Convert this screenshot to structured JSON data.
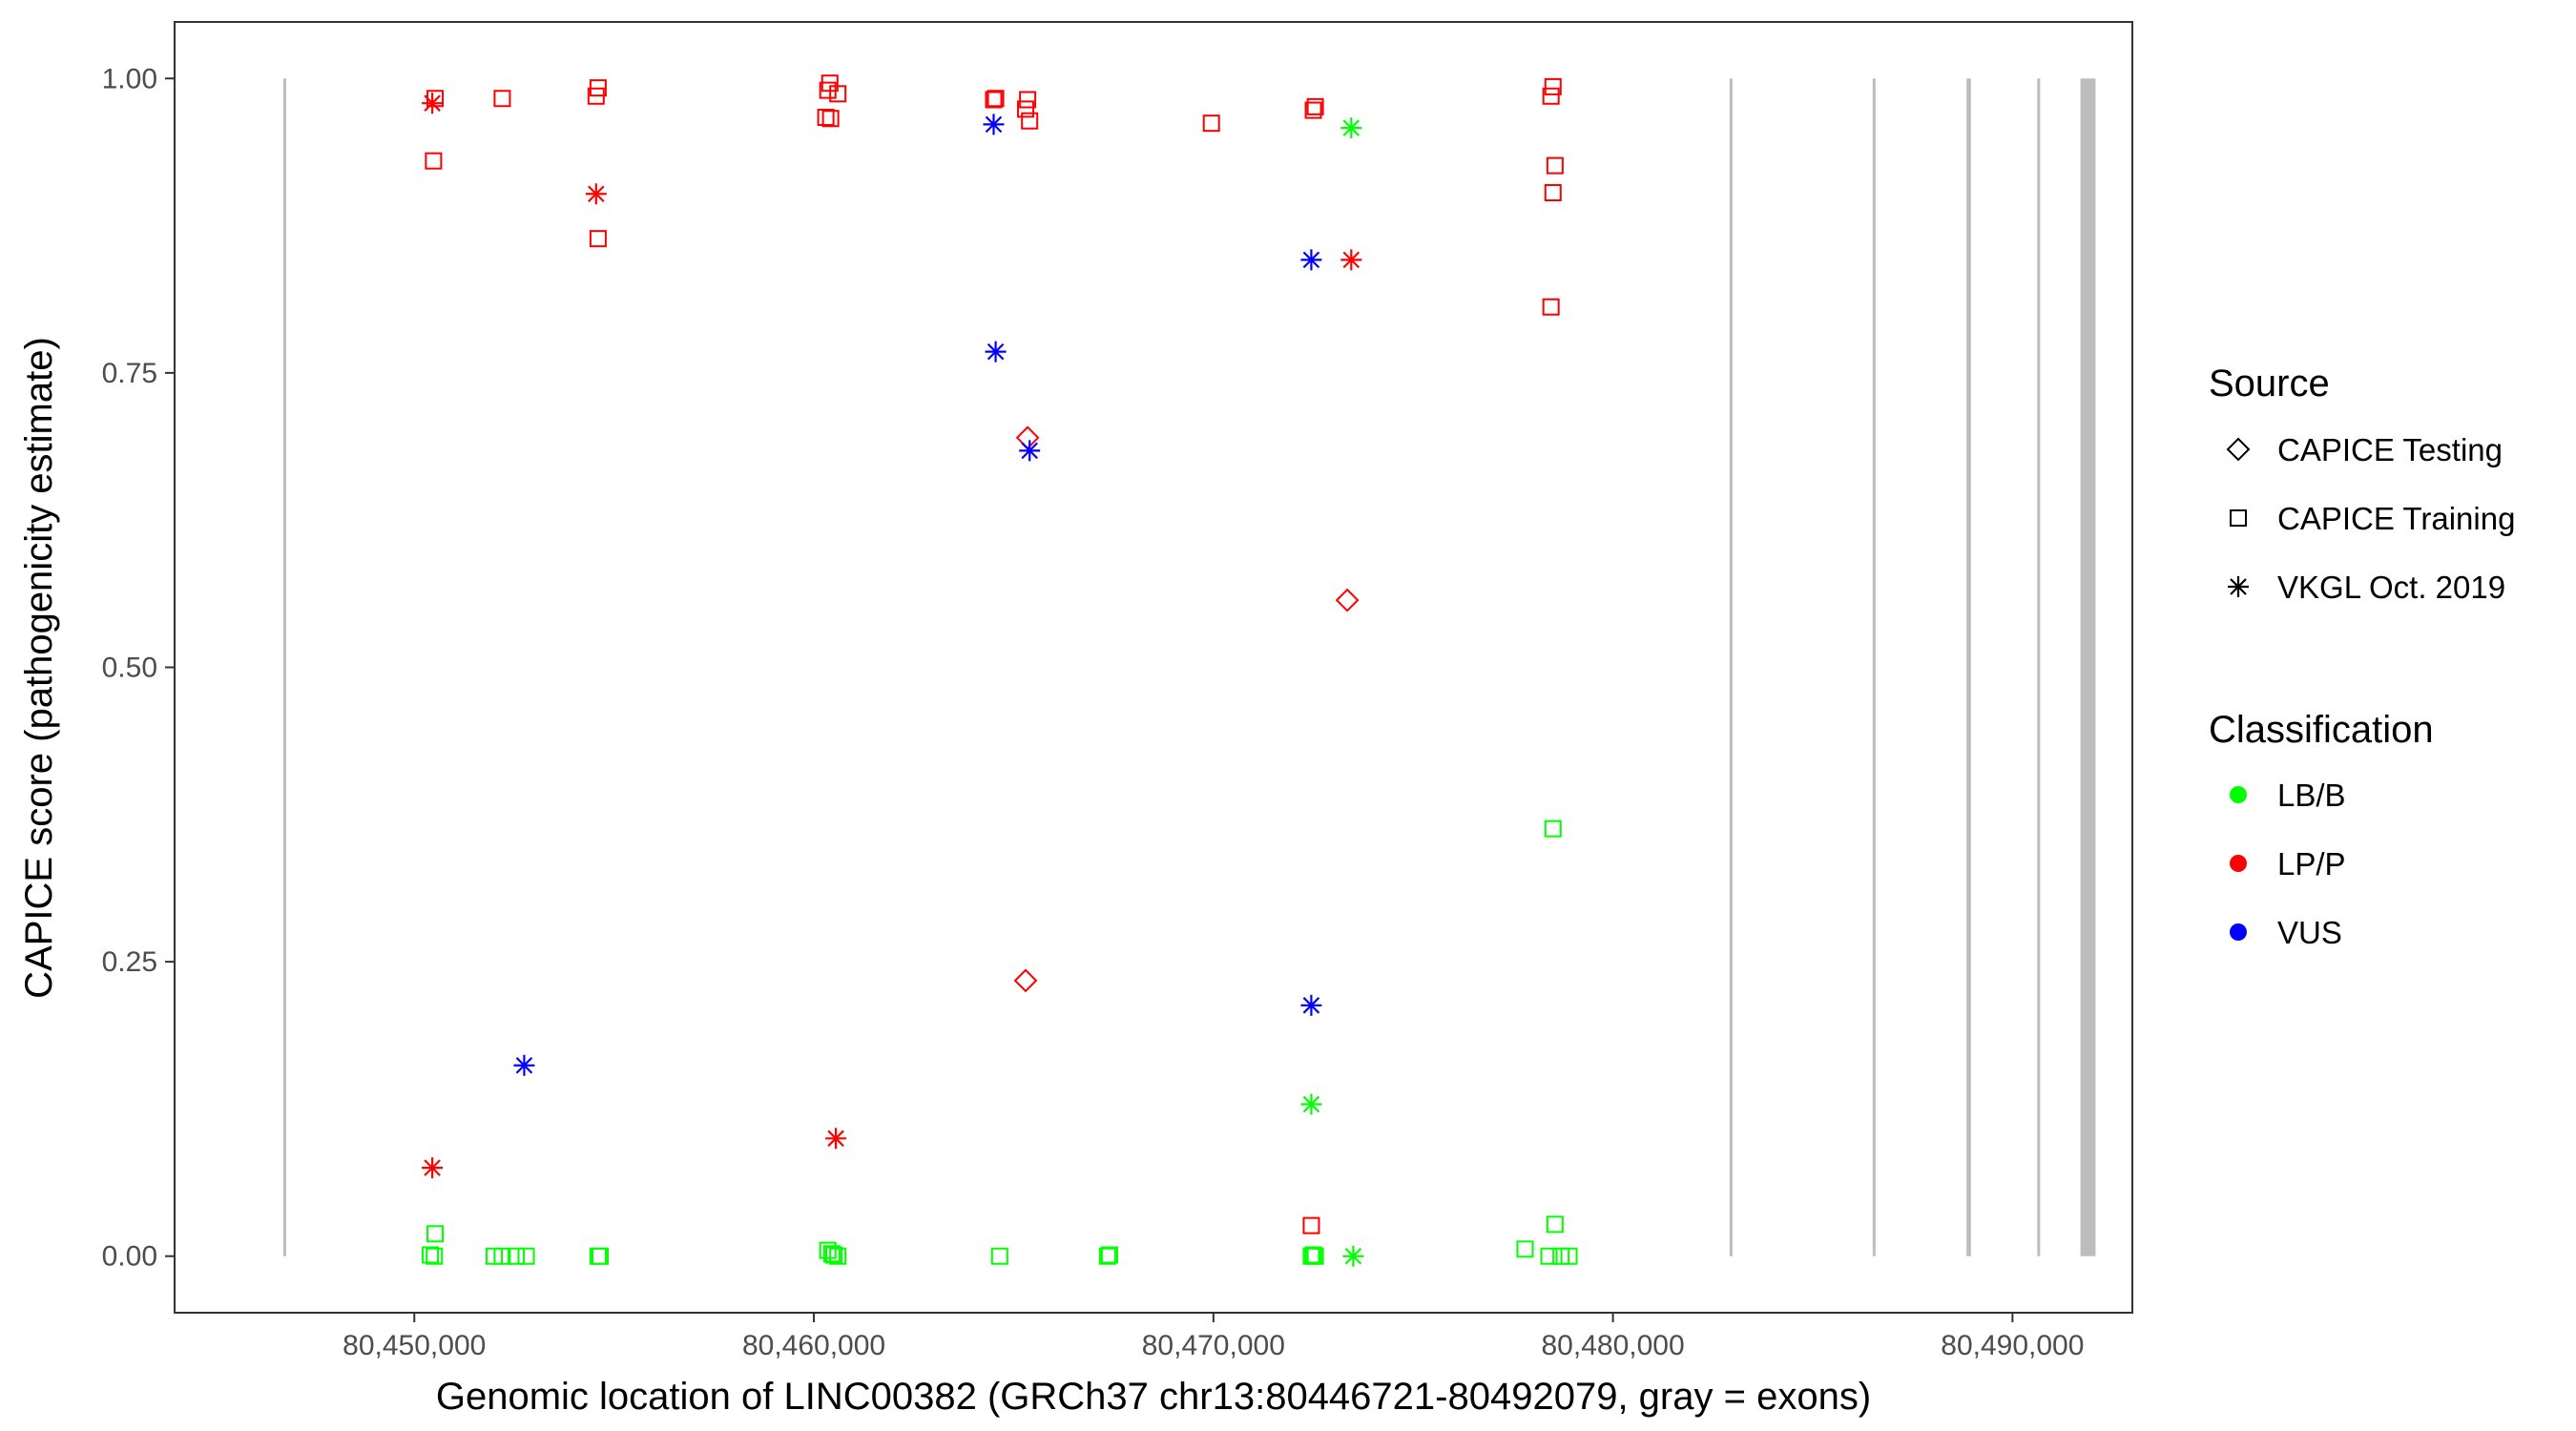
{
  "chart_data": {
    "type": "scatter",
    "title": "",
    "xlabel": "Genomic location of LINC00382 (GRCh37 chr13:80446721-80492079, gray = exons)",
    "ylabel": "CAPICE score (pathogenicity estimate)",
    "xlim": [
      80444000,
      80493000
    ],
    "ylim": [
      -0.048,
      1.048
    ],
    "x_ticks": [
      {
        "value": 80450000,
        "label": "80,450,000"
      },
      {
        "value": 80460000,
        "label": "80,460,000"
      },
      {
        "value": 80470000,
        "label": "80,470,000"
      },
      {
        "value": 80480000,
        "label": "80,480,000"
      },
      {
        "value": 80490000,
        "label": "80,490,000"
      }
    ],
    "y_ticks": [
      {
        "value": 0.0,
        "label": "0.00"
      },
      {
        "value": 0.25,
        "label": "0.25"
      },
      {
        "value": 0.5,
        "label": "0.50"
      },
      {
        "value": 0.75,
        "label": "0.75"
      },
      {
        "value": 1.0,
        "label": "1.00"
      }
    ],
    "grid": false,
    "exons": [
      {
        "start": 80446721,
        "end": 80446790
      },
      {
        "start": 80482920,
        "end": 80482990
      },
      {
        "start": 80486500,
        "end": 80486570
      },
      {
        "start": 80488850,
        "end": 80488960
      },
      {
        "start": 80490620,
        "end": 80490690
      },
      {
        "start": 80491700,
        "end": 80492079
      }
    ],
    "exon_color": "#bdbdbd",
    "legend_placement": "right",
    "legends": {
      "source": {
        "title": "Source",
        "items": [
          {
            "label": "CAPICE Testing",
            "shape": "diamond"
          },
          {
            "label": "CAPICE Training",
            "shape": "square"
          },
          {
            "label": "VKGL Oct. 2019",
            "shape": "asterisk"
          }
        ]
      },
      "classification": {
        "title": "Classification",
        "items": [
          {
            "label": "LB/B",
            "color": "#00ff00"
          },
          {
            "label": "LP/P",
            "color": "#ff0000"
          },
          {
            "label": "VUS",
            "color": "#0000ff"
          }
        ]
      }
    },
    "series": [
      {
        "source": "CAPICE Training",
        "classification": "LP/P",
        "points": [
          [
            80450520,
            0.983
          ],
          [
            80450480,
            0.93
          ],
          [
            80452200,
            0.983
          ],
          [
            80454600,
            0.992
          ],
          [
            80454550,
            0.985
          ],
          [
            80454600,
            0.864
          ],
          [
            80460400,
            0.996
          ],
          [
            80460350,
            0.99
          ],
          [
            80460600,
            0.987
          ],
          [
            80460300,
            0.967
          ],
          [
            80460420,
            0.966
          ],
          [
            80464550,
            0.983
          ],
          [
            80464500,
            0.982
          ],
          [
            80465350,
            0.982
          ],
          [
            80465300,
            0.974
          ],
          [
            80465400,
            0.964
          ],
          [
            80469950,
            0.962
          ],
          [
            80472550,
            0.976
          ],
          [
            80472500,
            0.973
          ],
          [
            80478500,
            0.993
          ],
          [
            80478450,
            0.985
          ],
          [
            80478550,
            0.926
          ],
          [
            80478500,
            0.903
          ],
          [
            80478450,
            0.806
          ],
          [
            80472450,
            0.026
          ]
        ]
      },
      {
        "source": "CAPICE Training",
        "classification": "LB/B",
        "points": [
          [
            80450520,
            0.019
          ],
          [
            80450400,
            0.001
          ],
          [
            80450500,
            0.0
          ],
          [
            80452000,
            0.0
          ],
          [
            80452200,
            0.0
          ],
          [
            80452550,
            0.0
          ],
          [
            80452800,
            0.0
          ],
          [
            80454600,
            0.0
          ],
          [
            80454650,
            0.0
          ],
          [
            80460350,
            0.005
          ],
          [
            80460450,
            0.002
          ],
          [
            80460600,
            0.0
          ],
          [
            80460500,
            0.001
          ],
          [
            80464650,
            0.0
          ],
          [
            80467350,
            0.0
          ],
          [
            80467400,
            0.001
          ],
          [
            80472450,
            0.0
          ],
          [
            80472550,
            0.0
          ],
          [
            80472500,
            0.001
          ],
          [
            80477800,
            0.006
          ],
          [
            80478500,
            0.363
          ],
          [
            80478550,
            0.027
          ],
          [
            80478400,
            0.0
          ],
          [
            80478700,
            0.0
          ],
          [
            80478900,
            0.0
          ]
        ]
      },
      {
        "source": "CAPICE Testing",
        "classification": "LP/P",
        "points": [
          [
            80465350,
            0.695
          ],
          [
            80473350,
            0.557
          ],
          [
            80465300,
            0.234
          ]
        ]
      },
      {
        "source": "VKGL Oct. 2019",
        "classification": "LP/P",
        "points": [
          [
            80450450,
            0.979
          ],
          [
            80454550,
            0.902
          ],
          [
            80473450,
            0.846
          ],
          [
            80450450,
            0.075
          ],
          [
            80460550,
            0.1
          ]
        ]
      },
      {
        "source": "VKGL Oct. 2019",
        "classification": "VUS",
        "points": [
          [
            80464500,
            0.961
          ],
          [
            80464550,
            0.768
          ],
          [
            80465400,
            0.684
          ],
          [
            80472450,
            0.846
          ],
          [
            80472450,
            0.213
          ],
          [
            80452750,
            0.162
          ]
        ]
      },
      {
        "source": "VKGL Oct. 2019",
        "classification": "LB/B",
        "points": [
          [
            80473450,
            0.958
          ],
          [
            80472450,
            0.129
          ],
          [
            80473500,
            0.0
          ]
        ]
      }
    ]
  }
}
